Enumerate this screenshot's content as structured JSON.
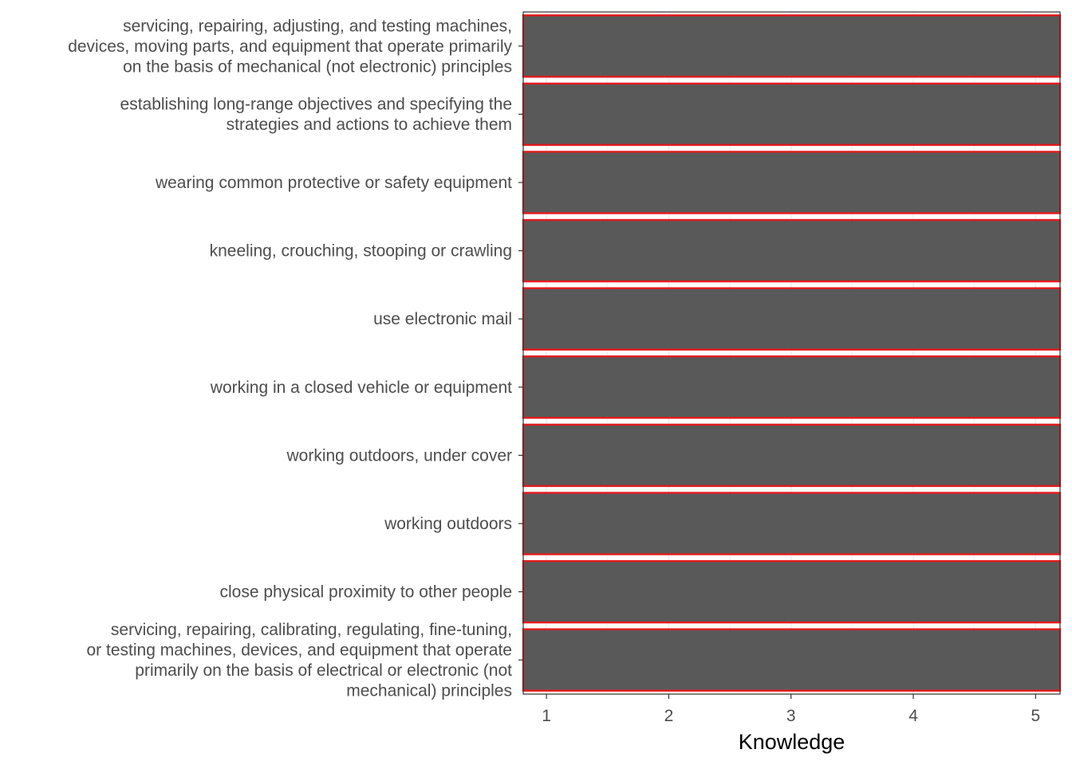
{
  "chart_data": {
    "type": "bar",
    "orientation": "horizontal",
    "categories": [
      [
        "servicing, repairing, adjusting, and testing machines,",
        "devices, moving parts, and equipment that operate primarily",
        "on the basis of mechanical (not electronic) principles"
      ],
      [
        "establishing long-range objectives and specifying the",
        "strategies and actions to achieve them"
      ],
      [
        "wearing common protective or safety equipment"
      ],
      [
        "kneeling, crouching, stooping or crawling"
      ],
      [
        "use electronic mail"
      ],
      [
        "working in a closed vehicle or equipment"
      ],
      [
        "working outdoors, under cover"
      ],
      [
        "working outdoors"
      ],
      [
        "close physical proximity to other people"
      ],
      [
        "servicing, repairing, calibrating, regulating, fine-tuning,",
        "or testing machines, devices, and equipment that operate",
        "primarily on the basis of electrical or electronic (not",
        "mechanical) principles"
      ]
    ],
    "values": [
      5.2,
      5.2,
      5.2,
      5.2,
      5.2,
      5.2,
      5.2,
      5.2,
      5.2,
      5.2
    ],
    "xlabel": "Knowledge",
    "ylabel": "",
    "xticks": [
      1,
      2,
      3,
      4,
      5
    ],
    "xlim": [
      0.81,
      5.2
    ],
    "grid": true,
    "bar_color": "#595959",
    "bar_outline_color": "#e41a1c",
    "panel_border_color": "#333333"
  }
}
